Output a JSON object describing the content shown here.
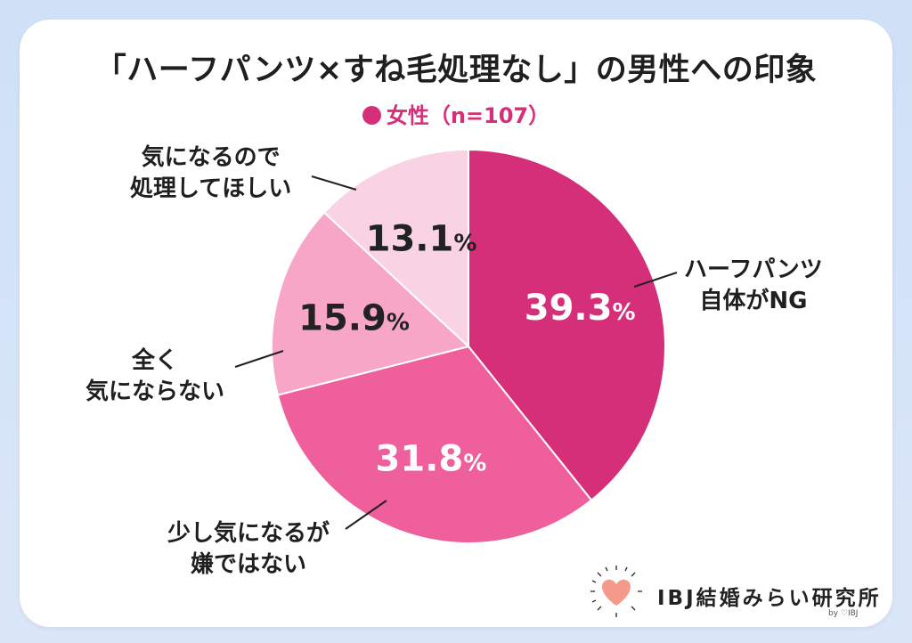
{
  "chart_data": {
    "type": "pie",
    "title": "「ハーフパンツ×すね毛処理なし」の男性への印象",
    "legend": [
      {
        "name": "女性（n=107）",
        "color": "#d62f7a"
      }
    ],
    "slices": [
      {
        "label_lines": [
          "ハーフパンツ",
          "自体がNG"
        ],
        "value": 39.3,
        "value_text": "39.3",
        "color": "#d62f7a",
        "text_color": "#ffffff"
      },
      {
        "label_lines": [
          "少し気になるが",
          "嫌ではない"
        ],
        "value": 31.8,
        "value_text": "31.8",
        "color": "#ef5f9c",
        "text_color": "#ffffff"
      },
      {
        "label_lines": [
          "全く",
          "気にならない"
        ],
        "value": 15.9,
        "value_text": "15.9",
        "color": "#f7a6c8",
        "text_color": "#222222"
      },
      {
        "label_lines": [
          "気になるので",
          "処理してほしい"
        ],
        "value": 13.1,
        "value_text": "13.1",
        "color": "#f9d3e3",
        "text_color": "#222222"
      }
    ],
    "percent_sign": "%"
  },
  "branding": {
    "logo_text": "IBJ結婚みらい研究所",
    "logo_sub": "by ♡IBJ",
    "logo_icon": "heart-icon"
  }
}
